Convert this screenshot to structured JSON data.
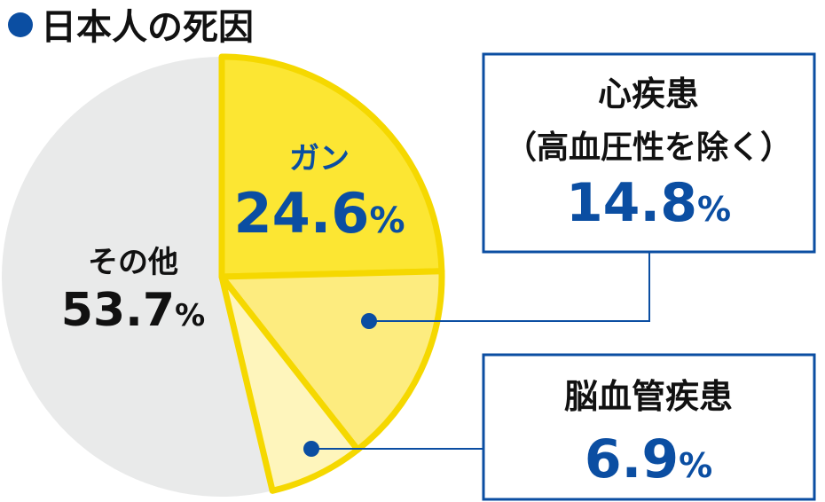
{
  "title": "日本人の死因",
  "colors": {
    "title_bullet": "#0b4ea2",
    "label_blue": "#0b4ea2",
    "label_dark": "#111111",
    "slice_outline": "#f5d800",
    "box_border": "#0b4ea2",
    "leader": "#0b4ea2"
  },
  "chart_data": {
    "type": "pie",
    "title": "日本人の死因",
    "unit": "%",
    "slices": [
      {
        "label": "ガン",
        "value": 24.6,
        "display": "24.6",
        "unit": "%",
        "color": "#fce633"
      },
      {
        "label_lines": [
          "心疾患",
          "（高血圧性を除く）"
        ],
        "value": 14.8,
        "display": "14.8",
        "unit": "%",
        "color": "#fdec7f"
      },
      {
        "label": "脳血管疾患",
        "value": 6.9,
        "display": "6.9",
        "unit": "%",
        "color": "#fef5bc"
      },
      {
        "label": "その他",
        "value": 53.7,
        "display": "53.7",
        "unit": "%",
        "color": "#e9eaea"
      }
    ]
  }
}
